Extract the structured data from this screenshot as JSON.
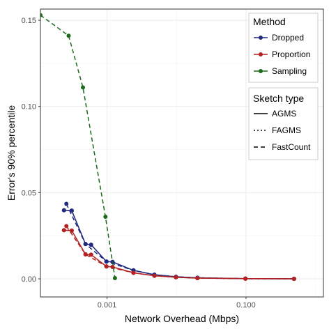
{
  "chart_data": {
    "type": "line",
    "xlabel": "Network Overhead (Mbps)",
    "ylabel": "Error's 90% percentile",
    "x_scale": "log10",
    "xlim": [
      0.00011,
      1.3
    ],
    "ylim": [
      -0.0105,
      0.1565
    ],
    "x_ticks": [
      {
        "value": 0.001,
        "label": "0.001"
      },
      {
        "value": 0.1,
        "label": "0.100"
      }
    ],
    "y_ticks": [
      {
        "value": 0.0,
        "label": "0.00"
      },
      {
        "value": 0.05,
        "label": "0.05"
      },
      {
        "value": 0.1,
        "label": "0.10"
      },
      {
        "value": 0.15,
        "label": "0.15"
      }
    ],
    "grid": true,
    "legend_position": "top-right",
    "legend_method_title": "Method",
    "legend_sketch_title": "Sketch type",
    "methods": [
      {
        "name": "Dropped",
        "color": "#1f2a80"
      },
      {
        "name": "Proportion",
        "color": "#b22222"
      },
      {
        "name": "Sampling",
        "color": "#1a6b1a"
      }
    ],
    "sketch_types": [
      {
        "name": "AGMS",
        "dash": "solid"
      },
      {
        "name": "FAGMS",
        "dash": "dotted"
      },
      {
        "name": "FastCount",
        "dash": "dashed"
      }
    ],
    "series": [
      {
        "method": "Dropped",
        "sketch": "AGMS",
        "points": [
          [
            0.00024,
            0.0398
          ],
          [
            0.00031,
            0.0396
          ],
          [
            0.00049,
            0.0202
          ],
          [
            0.00059,
            0.0198
          ],
          [
            0.00098,
            0.01
          ],
          [
            0.0012,
            0.0098
          ],
          [
            0.0024,
            0.0049
          ],
          [
            0.0048,
            0.0024
          ],
          [
            0.0098,
            0.0012
          ],
          [
            0.02,
            0.0006
          ],
          [
            0.098,
            0.0001
          ],
          [
            0.49,
            0.0
          ]
        ]
      },
      {
        "method": "Dropped",
        "sketch": "FAGMS",
        "points": [
          [
            0.00024,
            0.0398
          ],
          [
            0.00031,
            0.0396
          ],
          [
            0.00049,
            0.0202
          ],
          [
            0.00059,
            0.0198
          ],
          [
            0.00098,
            0.01
          ],
          [
            0.0012,
            0.0098
          ],
          [
            0.0024,
            0.0049
          ],
          [
            0.0048,
            0.0024
          ],
          [
            0.0098,
            0.0012
          ],
          [
            0.02,
            0.0006
          ],
          [
            0.098,
            0.0001
          ],
          [
            0.49,
            0.0
          ]
        ]
      },
      {
        "method": "Dropped",
        "sketch": "FastCount",
        "points": [
          [
            0.00026,
            0.0435
          ],
          [
            0.00049,
            0.0202
          ],
          [
            0.00098,
            0.01
          ],
          [
            0.0024,
            0.0049
          ],
          [
            0.0048,
            0.0024
          ],
          [
            0.0098,
            0.0012
          ],
          [
            0.02,
            0.0006
          ],
          [
            0.098,
            0.0001
          ],
          [
            0.49,
            0.0
          ]
        ]
      },
      {
        "method": "Proportion",
        "sketch": "AGMS",
        "points": [
          [
            0.00024,
            0.0282
          ],
          [
            0.00031,
            0.028
          ],
          [
            0.00049,
            0.0142
          ],
          [
            0.00059,
            0.014
          ],
          [
            0.00098,
            0.0072
          ],
          [
            0.0012,
            0.0069
          ],
          [
            0.0024,
            0.0035
          ],
          [
            0.0048,
            0.0018
          ],
          [
            0.0098,
            0.0009
          ],
          [
            0.02,
            0.0004
          ],
          [
            0.098,
            0.0001
          ],
          [
            0.49,
            0.0
          ]
        ]
      },
      {
        "method": "Proportion",
        "sketch": "FAGMS",
        "points": [
          [
            0.00024,
            0.0282
          ],
          [
            0.00031,
            0.028
          ],
          [
            0.00049,
            0.0142
          ],
          [
            0.00059,
            0.014
          ],
          [
            0.00098,
            0.0072
          ],
          [
            0.0012,
            0.0069
          ],
          [
            0.0024,
            0.0035
          ],
          [
            0.0048,
            0.0018
          ],
          [
            0.0098,
            0.0009
          ],
          [
            0.02,
            0.0004
          ],
          [
            0.098,
            0.0001
          ],
          [
            0.49,
            0.0
          ]
        ]
      },
      {
        "method": "Proportion",
        "sketch": "FastCount",
        "points": [
          [
            0.00026,
            0.0306
          ],
          [
            0.00049,
            0.0142
          ],
          [
            0.00098,
            0.0072
          ],
          [
            0.0024,
            0.0035
          ],
          [
            0.0048,
            0.0018
          ],
          [
            0.0098,
            0.0009
          ],
          [
            0.02,
            0.0004
          ],
          [
            0.098,
            0.0001
          ],
          [
            0.49,
            0.0
          ]
        ]
      },
      {
        "method": "Sampling",
        "sketch": "FastCount",
        "points": [
          [
            0.00011,
            0.153
          ],
          [
            0.00028,
            0.141
          ],
          [
            0.00045,
            0.111
          ],
          [
            0.00095,
            0.036
          ],
          [
            0.0013,
            0.0004
          ]
        ]
      }
    ]
  }
}
